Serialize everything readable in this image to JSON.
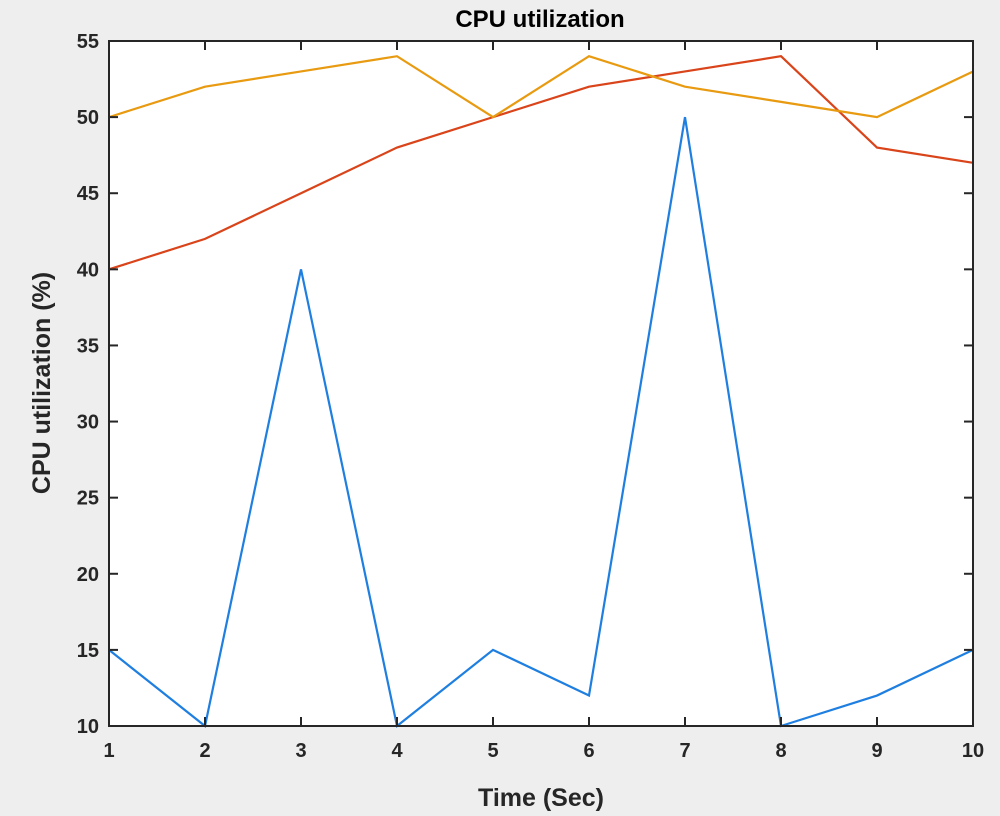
{
  "chart_data": {
    "type": "line",
    "title": "CPU utilization",
    "xlabel": "Time (Sec)",
    "ylabel": "CPU utilization (%)",
    "x": [
      1,
      2,
      3,
      4,
      5,
      6,
      7,
      8,
      9,
      10
    ],
    "xlim": [
      1,
      10
    ],
    "ylim": [
      10,
      55
    ],
    "xticks": [
      1,
      2,
      3,
      4,
      5,
      6,
      7,
      8,
      9,
      10
    ],
    "yticks": [
      10,
      15,
      20,
      25,
      30,
      35,
      40,
      45,
      50,
      55
    ],
    "grid": false,
    "legend": "none",
    "series": [
      {
        "color": "#1f7fe0",
        "values": [
          15,
          10,
          40,
          10,
          15,
          12,
          50,
          10,
          12,
          15
        ]
      },
      {
        "color": "#d9441a",
        "values": [
          40,
          42,
          45,
          48,
          50,
          52,
          53,
          54,
          48,
          47
        ]
      },
      {
        "color": "#e89a10",
        "values": [
          50,
          52,
          53,
          54,
          50,
          54,
          52,
          51,
          50,
          53
        ]
      }
    ]
  }
}
